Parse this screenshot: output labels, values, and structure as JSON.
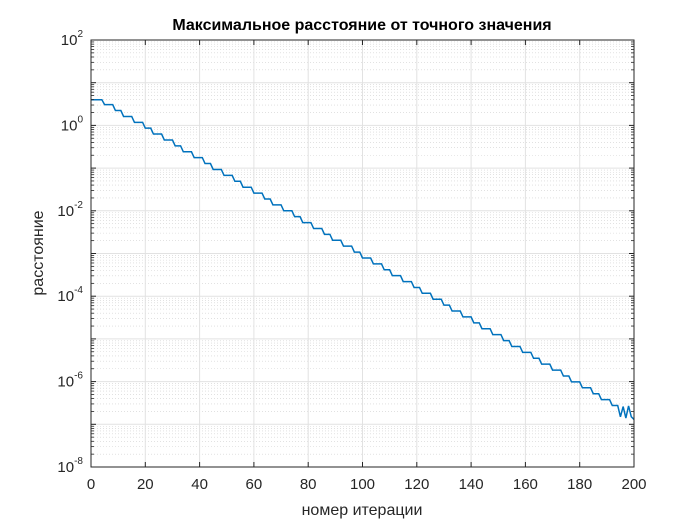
{
  "chart_data": {
    "type": "line",
    "title": "Максимальное расстояние от точного значения",
    "xlabel": "номер итерации",
    "ylabel": "расстояние",
    "xlim": [
      0,
      200
    ],
    "ylim": [
      1e-08,
      100
    ],
    "yscale": "log",
    "grid": true,
    "minor_grid": true,
    "x_ticks": [
      "0",
      "20",
      "40",
      "60",
      "80",
      "100",
      "120",
      "140",
      "160",
      "180",
      "200"
    ],
    "y_ticks": [
      {
        "base": "10",
        "exp": "2"
      },
      {
        "base": "10",
        "exp": "0"
      },
      {
        "base": "10",
        "exp": "-2"
      },
      {
        "base": "10",
        "exp": "-4"
      },
      {
        "base": "10",
        "exp": "-6"
      },
      {
        "base": "10",
        "exp": "-8"
      }
    ],
    "series": [
      {
        "color": "#0072BD",
        "x": [
          0,
          4,
          5,
          8,
          9,
          11,
          12,
          15,
          16,
          19,
          20,
          22,
          23,
          26,
          27,
          30,
          31,
          33,
          34,
          37,
          38,
          41,
          42,
          44,
          45,
          48,
          49,
          52,
          53,
          55,
          56,
          59,
          60,
          63,
          64,
          66,
          67,
          70,
          71,
          74,
          75,
          77,
          78,
          81,
          82,
          85,
          86,
          88,
          89,
          92,
          93,
          96,
          97,
          99,
          100,
          103,
          104,
          107,
          108,
          110,
          111,
          114,
          115,
          118,
          119,
          121,
          122,
          125,
          126,
          129,
          130,
          132,
          133,
          136,
          137,
          140,
          141,
          143,
          144,
          147,
          148,
          151,
          152,
          154,
          155,
          158,
          159,
          162,
          163,
          165,
          166,
          169,
          170,
          173,
          174,
          176,
          177,
          180,
          181,
          184,
          185,
          187,
          188,
          191,
          192,
          194,
          195,
          196,
          197,
          198,
          199,
          200
        ],
        "y": [
          4.0,
          4.0,
          3.06,
          3.06,
          2.23,
          2.23,
          1.62,
          1.62,
          1.18,
          1.18,
          0.862,
          0.862,
          0.627,
          0.627,
          0.456,
          0.456,
          0.332,
          0.332,
          0.241,
          0.241,
          0.176,
          0.176,
          0.128,
          0.128,
          0.0928,
          0.0928,
          0.0675,
          0.0675,
          0.0491,
          0.0491,
          0.0357,
          0.0357,
          0.026,
          0.026,
          0.0189,
          0.0189,
          0.0138,
          0.0138,
          0.01,
          0.01,
          0.0073,
          0.0073,
          0.0053,
          0.0053,
          0.00386,
          0.00386,
          0.00281,
          0.00281,
          0.00204,
          0.00204,
          0.00149,
          0.00149,
          0.00108,
          0.00108,
          0.000787,
          0.000787,
          0.000572,
          0.000572,
          0.000416,
          0.000416,
          0.000303,
          0.000303,
          0.00022,
          0.00022,
          0.00016,
          0.00016,
          0.000117,
          0.000117,
          8.49e-05,
          8.49e-05,
          6.17e-05,
          6.17e-05,
          4.49e-05,
          4.49e-05,
          3.27e-05,
          3.27e-05,
          2.38e-05,
          2.38e-05,
          1.73e-05,
          1.73e-05,
          1.26e-05,
          1.26e-05,
          9.14e-06,
          9.14e-06,
          6.65e-06,
          6.65e-06,
          4.84e-06,
          4.84e-06,
          3.52e-06,
          3.52e-06,
          2.56e-06,
          2.56e-06,
          1.86e-06,
          1.86e-06,
          1.35e-06,
          1.35e-06,
          9.85e-07,
          9.85e-07,
          7.16e-07,
          7.16e-07,
          5.21e-07,
          5.21e-07,
          3.79e-07,
          3.79e-07,
          2.76e-07,
          2.76e-07,
          1.5e-07,
          2.6e-07,
          1.4e-07,
          2.7e-07,
          1.5e-07,
          1.3e-07
        ]
      }
    ]
  }
}
